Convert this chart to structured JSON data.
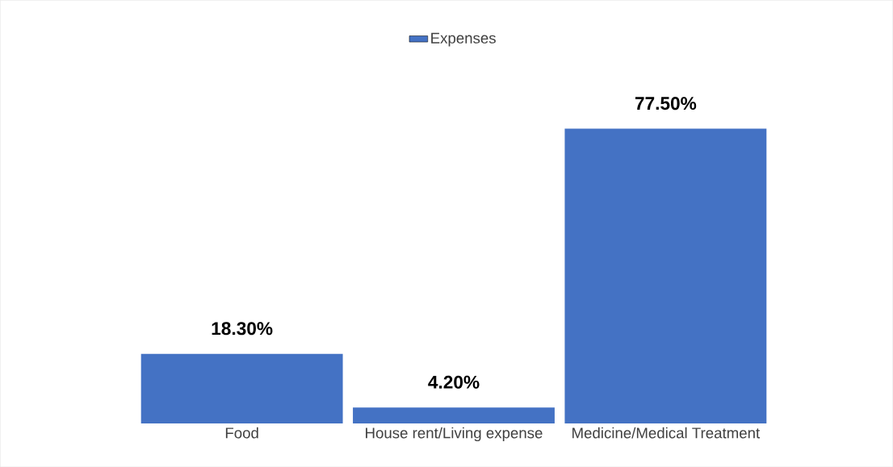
{
  "chart_data": {
    "type": "bar",
    "categories": [
      "Food",
      "House rent/Living expense",
      "Medicine/Medical Treatment"
    ],
    "series": [
      {
        "name": "Expenses",
        "color": "#4472c4",
        "values": [
          18.3,
          4.2,
          77.5
        ],
        "value_labels": [
          "18.30%",
          "4.20%",
          "77.50%"
        ]
      }
    ],
    "legend": "top"
  }
}
